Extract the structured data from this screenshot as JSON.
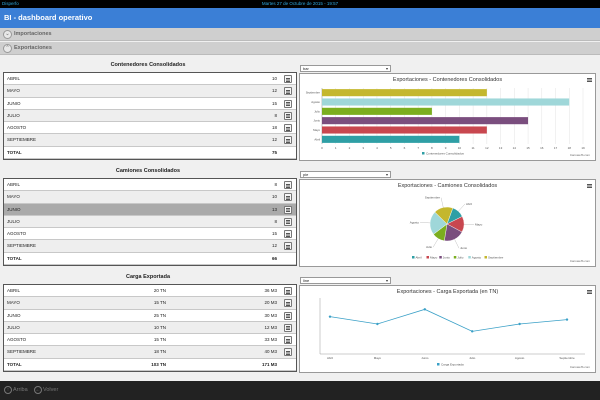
{
  "topbar": {
    "app": "Disperfo",
    "datetime": "Martes 27 de Octubre de 2015 - 19:57"
  },
  "header": {
    "title": "BI - dashboard operativo"
  },
  "nav": {
    "importaciones": "Importaciones",
    "exportaciones": "Exportaciones"
  },
  "contenedores": {
    "title": "Contenedores Consolidados",
    "rows": [
      {
        "label": "ABRIL",
        "value": "10"
      },
      {
        "label": "MAYO",
        "value": "12"
      },
      {
        "label": "JUNIO",
        "value": "15"
      },
      {
        "label": "JULIO",
        "value": "8"
      },
      {
        "label": "AGOSTO",
        "value": "18"
      },
      {
        "label": "SEPTIEMBRE",
        "value": "12"
      }
    ],
    "total_label": "TOTAL",
    "total_value": "75",
    "select_value": "bar",
    "chart_title": "Exportaciones - Contenedores Consolidados",
    "legend": "Contenedores Consolidados"
  },
  "camiones": {
    "title": "Camiones Consolidados",
    "rows": [
      {
        "label": "ABRIL",
        "value": "8"
      },
      {
        "label": "MAYO",
        "value": "10"
      },
      {
        "label": "JUNIO",
        "value": "13"
      },
      {
        "label": "JULIO",
        "value": "8"
      },
      {
        "label": "AGOSTO",
        "value": "15"
      },
      {
        "label": "SEPTIEMBRE",
        "value": "12"
      }
    ],
    "total_label": "TOTAL",
    "total_value": "66",
    "select_value": "pie",
    "chart_title": "Exportaciones - Camiones Consolidados"
  },
  "carga": {
    "title": "Carga Exportada",
    "rows": [
      {
        "label": "ABRIL",
        "tn": "20 TN",
        "m3": "36 M3"
      },
      {
        "label": "MAYO",
        "tn": "15 TN",
        "m3": "20 M3"
      },
      {
        "label": "JUNIO",
        "tn": "25 TN",
        "m3": "30 M3"
      },
      {
        "label": "JULIO",
        "tn": "10 TN",
        "m3": "12 M3"
      },
      {
        "label": "AGOSTO",
        "tn": "15 TN",
        "m3": "33 M3"
      },
      {
        "label": "SEPTIEMBRE",
        "tn": "18 TN",
        "m3": "40 M3"
      }
    ],
    "total_label": "TOTAL",
    "total_tn": "103 TN",
    "total_m3": "171 M3",
    "select_value": "line",
    "chart_title": "Exportaciones - Carga Exportada (en TN)",
    "legend": "Carga Exportada"
  },
  "credit": "CanvasJS.com",
  "footer": {
    "arriba": "Arriba",
    "volver": "Volver"
  },
  "colors": {
    "header": "#3b7fd6",
    "line": "#3aa0c7"
  },
  "chart_data": [
    {
      "type": "bar",
      "title": "Exportaciones - Contenedores Consolidados",
      "categories": [
        "Septiembre",
        "Agosto",
        "Julio",
        "Junio",
        "Mayo",
        "Abril"
      ],
      "values": [
        12,
        18,
        8,
        15,
        12,
        10
      ],
      "colors": [
        "#c4b72d",
        "#9fd7d9",
        "#7bae1f",
        "#7a4e7e",
        "#c8474f",
        "#2f9fa5"
      ],
      "xlim": [
        0,
        19
      ],
      "ticks": [
        0,
        1,
        2,
        3,
        4,
        5,
        6,
        7,
        8,
        9,
        10,
        11,
        12,
        13,
        14,
        15,
        16,
        17,
        18,
        19
      ],
      "legend": [
        "Contenedores Consolidados"
      ]
    },
    {
      "type": "pie",
      "title": "Exportaciones - Camiones Consolidados",
      "categories": [
        "Abril",
        "Mayo",
        "Junio",
        "Julio",
        "Agosto",
        "Septiembre"
      ],
      "values": [
        8,
        10,
        13,
        8,
        15,
        12
      ],
      "colors": [
        "#2f9fa5",
        "#c8474f",
        "#7a4e7e",
        "#7bae1f",
        "#9fd7d9",
        "#c4b72d"
      ]
    },
    {
      "type": "line",
      "title": "Exportaciones - Carga Exportada (en TN)",
      "categories": [
        "Abril",
        "Mayo",
        "Junio",
        "Julio",
        "Agosto",
        "Septiembre"
      ],
      "values": [
        20,
        15,
        25,
        10,
        15,
        18
      ],
      "ylim": [
        0,
        30
      ],
      "legend": [
        "Carga Exportada"
      ]
    }
  ]
}
